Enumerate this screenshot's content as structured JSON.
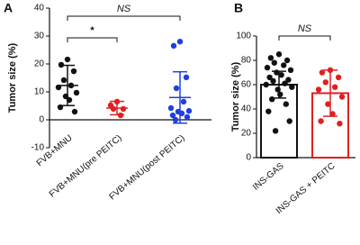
{
  "chart_data": [
    {
      "type": "dot",
      "panel": "A",
      "y_label": "Tumor size (%)",
      "categories": [
        "FVB+MNU",
        "FVB+MNU(pre PEITC)",
        "FVB+MNU(post PEITC)"
      ],
      "colors": [
        "#111111",
        "#e02020",
        "#1f3fe0"
      ],
      "points": [
        [
          21.6,
          19.7,
          17.4,
          14.2,
          12.3,
          11.6,
          9.7,
          8.4,
          7.1,
          4.5,
          2.9
        ],
        [
          6.5,
          5.2,
          3.9,
          3.9,
          1.6
        ],
        [
          28,
          26.5,
          15.2,
          11.3,
          6.5,
          4.2,
          3.2,
          2.9,
          2.3,
          1.6,
          1,
          0
        ]
      ],
      "means": [
        12.3,
        4.2,
        8
      ],
      "sds": [
        7.2,
        2.4,
        9.2
      ],
      "ylim": [
        -10,
        40
      ],
      "yticks": [
        -10,
        0,
        10,
        20,
        30,
        40
      ],
      "annotations": [
        "NS",
        "*"
      ]
    },
    {
      "type": "bar",
      "panel": "B",
      "y_label": "Tumor size (%)",
      "categories": [
        "INS-GAS",
        "INS-GAS + PEITC"
      ],
      "colors": [
        "#111111",
        "#e02020"
      ],
      "values": [
        60,
        53
      ],
      "sds": [
        11,
        19
      ],
      "points": [
        [
          85,
          82,
          80,
          78,
          76,
          74,
          72,
          70,
          68,
          66,
          64,
          63,
          61,
          60,
          58,
          56,
          52,
          48,
          44,
          38,
          30,
          22
        ],
        [
          72,
          70,
          66,
          62,
          58,
          56,
          50,
          44,
          36,
          30,
          28
        ]
      ],
      "ylim": [
        0,
        100
      ],
      "yticks": [
        0,
        20,
        40,
        60,
        80,
        100
      ],
      "annotations": [
        "NS"
      ]
    }
  ]
}
